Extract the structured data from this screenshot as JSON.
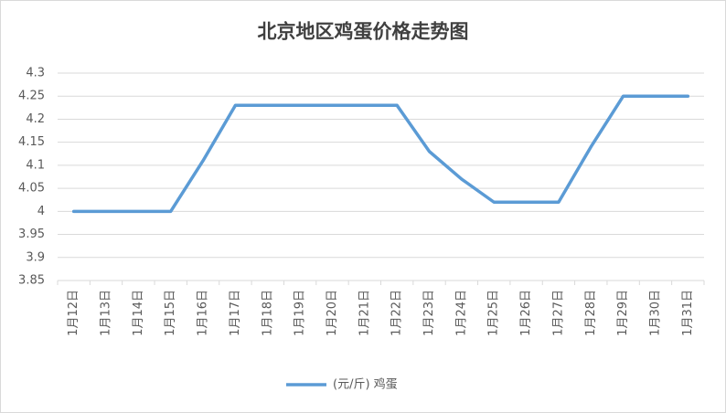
{
  "chart_data": {
    "type": "line",
    "title": "北京地区鸡蛋价格走势图",
    "categories": [
      "1月12日",
      "1月13日",
      "1月14日",
      "1月15日",
      "1月16日",
      "1月17日",
      "1月18日",
      "1月19日",
      "1月20日",
      "1月21日",
      "1月22日",
      "1月23日",
      "1月24日",
      "1月25日",
      "1月26日",
      "1月27日",
      "1月28日",
      "1月29日",
      "1月30日",
      "1月31日"
    ],
    "series": [
      {
        "name": "(元/斤) 鸡蛋",
        "color": "#5b9bd5",
        "values": [
          4,
          4,
          4,
          4,
          4.11,
          4.23,
          4.23,
          4.23,
          4.23,
          4.23,
          4.23,
          4.13,
          4.07,
          4.02,
          4.02,
          4.02,
          4.14,
          4.25,
          4.25,
          4.25
        ]
      }
    ],
    "ylim": [
      3.85,
      4.3
    ],
    "yticks": [
      3.85,
      3.9,
      3.95,
      4,
      4.05,
      4.1,
      4.15,
      4.2,
      4.25,
      4.3
    ],
    "grid": true,
    "legend": "bottom"
  }
}
